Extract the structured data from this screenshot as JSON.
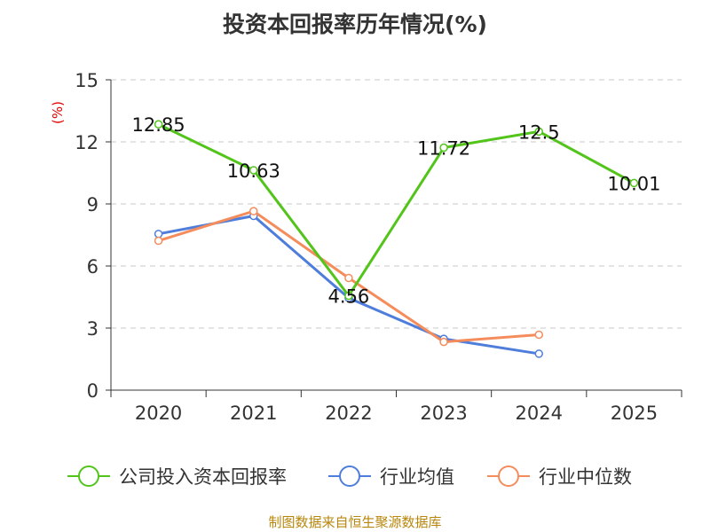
{
  "chart_data": {
    "type": "line",
    "title": "投资本回报率历年情况(%)",
    "ylabel": "(%)",
    "xlabel": "",
    "ylim": [
      0,
      15
    ],
    "yticks": [
      0,
      3,
      6,
      9,
      12,
      15
    ],
    "categories": [
      "2020",
      "2021",
      "2022",
      "2023",
      "2024",
      "2025"
    ],
    "grid": true,
    "legend_position": "bottom",
    "series": [
      {
        "name": "公司投入资本回报率",
        "color": "#52c41a",
        "values": [
          12.85,
          10.63,
          4.56,
          11.72,
          12.5,
          10.01
        ],
        "labels": [
          "12.85",
          "10.63",
          "4.56",
          "11.72",
          "12.5",
          "10.01"
        ]
      },
      {
        "name": "行业均值",
        "color": "#4e7ddb",
        "values": [
          7.55,
          8.42,
          4.45,
          2.48,
          1.76,
          null
        ]
      },
      {
        "name": "行业中位数",
        "color": "#f48c5c",
        "values": [
          7.22,
          8.65,
          5.42,
          2.33,
          2.68,
          null
        ]
      }
    ]
  },
  "source": "制图数据来自恒生聚源数据库"
}
